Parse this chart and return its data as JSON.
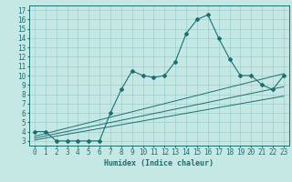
{
  "xlabel": "Humidex (Indice chaleur)",
  "background_color": "#c5e8e5",
  "grid_color": "#9ecece",
  "line_color": "#1a7070",
  "xlim": [
    -0.5,
    23.5
  ],
  "ylim": [
    2.5,
    17.5
  ],
  "xticks": [
    0,
    1,
    2,
    3,
    4,
    5,
    6,
    7,
    8,
    9,
    10,
    11,
    12,
    13,
    14,
    15,
    16,
    17,
    18,
    19,
    20,
    21,
    22,
    23
  ],
  "yticks": [
    3,
    4,
    5,
    6,
    7,
    8,
    9,
    10,
    11,
    12,
    13,
    14,
    15,
    16,
    17
  ],
  "line1_x": [
    0,
    1,
    2,
    3,
    4,
    5,
    6,
    7,
    8,
    9,
    10,
    11,
    12,
    13,
    14,
    15,
    16,
    17,
    18,
    19,
    20,
    21,
    22,
    23
  ],
  "line1_y": [
    4,
    4,
    3,
    3,
    3,
    3,
    3,
    6,
    8.5,
    10.5,
    10,
    9.8,
    10,
    11.5,
    14.5,
    16,
    16.5,
    14,
    11.8,
    10,
    10,
    9,
    8.5,
    10
  ],
  "line2_x": [
    0,
    23
  ],
  "line2_y": [
    3.5,
    10.2
  ],
  "line3_x": [
    0,
    23
  ],
  "line3_y": [
    3.3,
    8.8
  ],
  "line4_x": [
    0,
    23
  ],
  "line4_y": [
    3.1,
    7.8
  ],
  "font_size_label": 6,
  "font_size_tick": 5.5
}
